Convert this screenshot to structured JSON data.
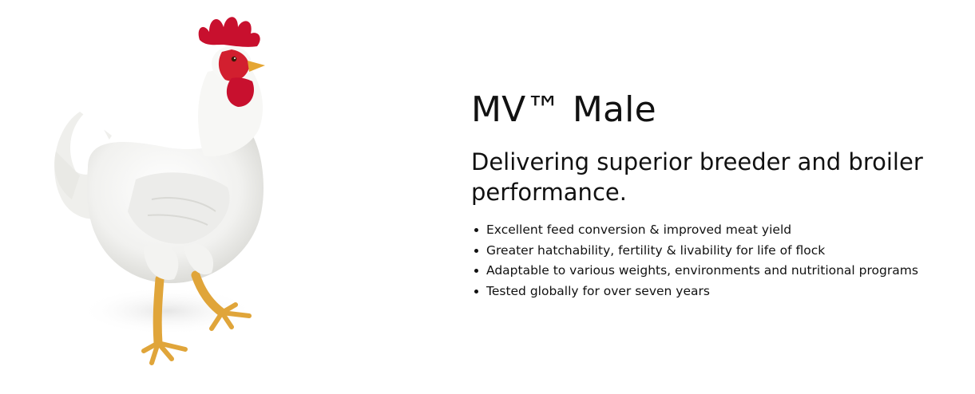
{
  "product": {
    "title": "MV™ Male",
    "subtitle": "Delivering superior breeder and broiler performance.",
    "image_subject": "white-rooster-icon"
  },
  "features": [
    {
      "text": "Excellent feed conversion & improved meat yield"
    },
    {
      "text": "Greater hatchability, fertility & livability for life of flock"
    },
    {
      "text": "Adaptable to various weights, environments and nutritional programs"
    },
    {
      "text": "Tested globally for over seven years"
    }
  ],
  "colors": {
    "background": "#ffffff",
    "text": "#111111",
    "comb": "#c8102e",
    "feathers": "#f4f4f2",
    "legs": "#e0a53a"
  }
}
